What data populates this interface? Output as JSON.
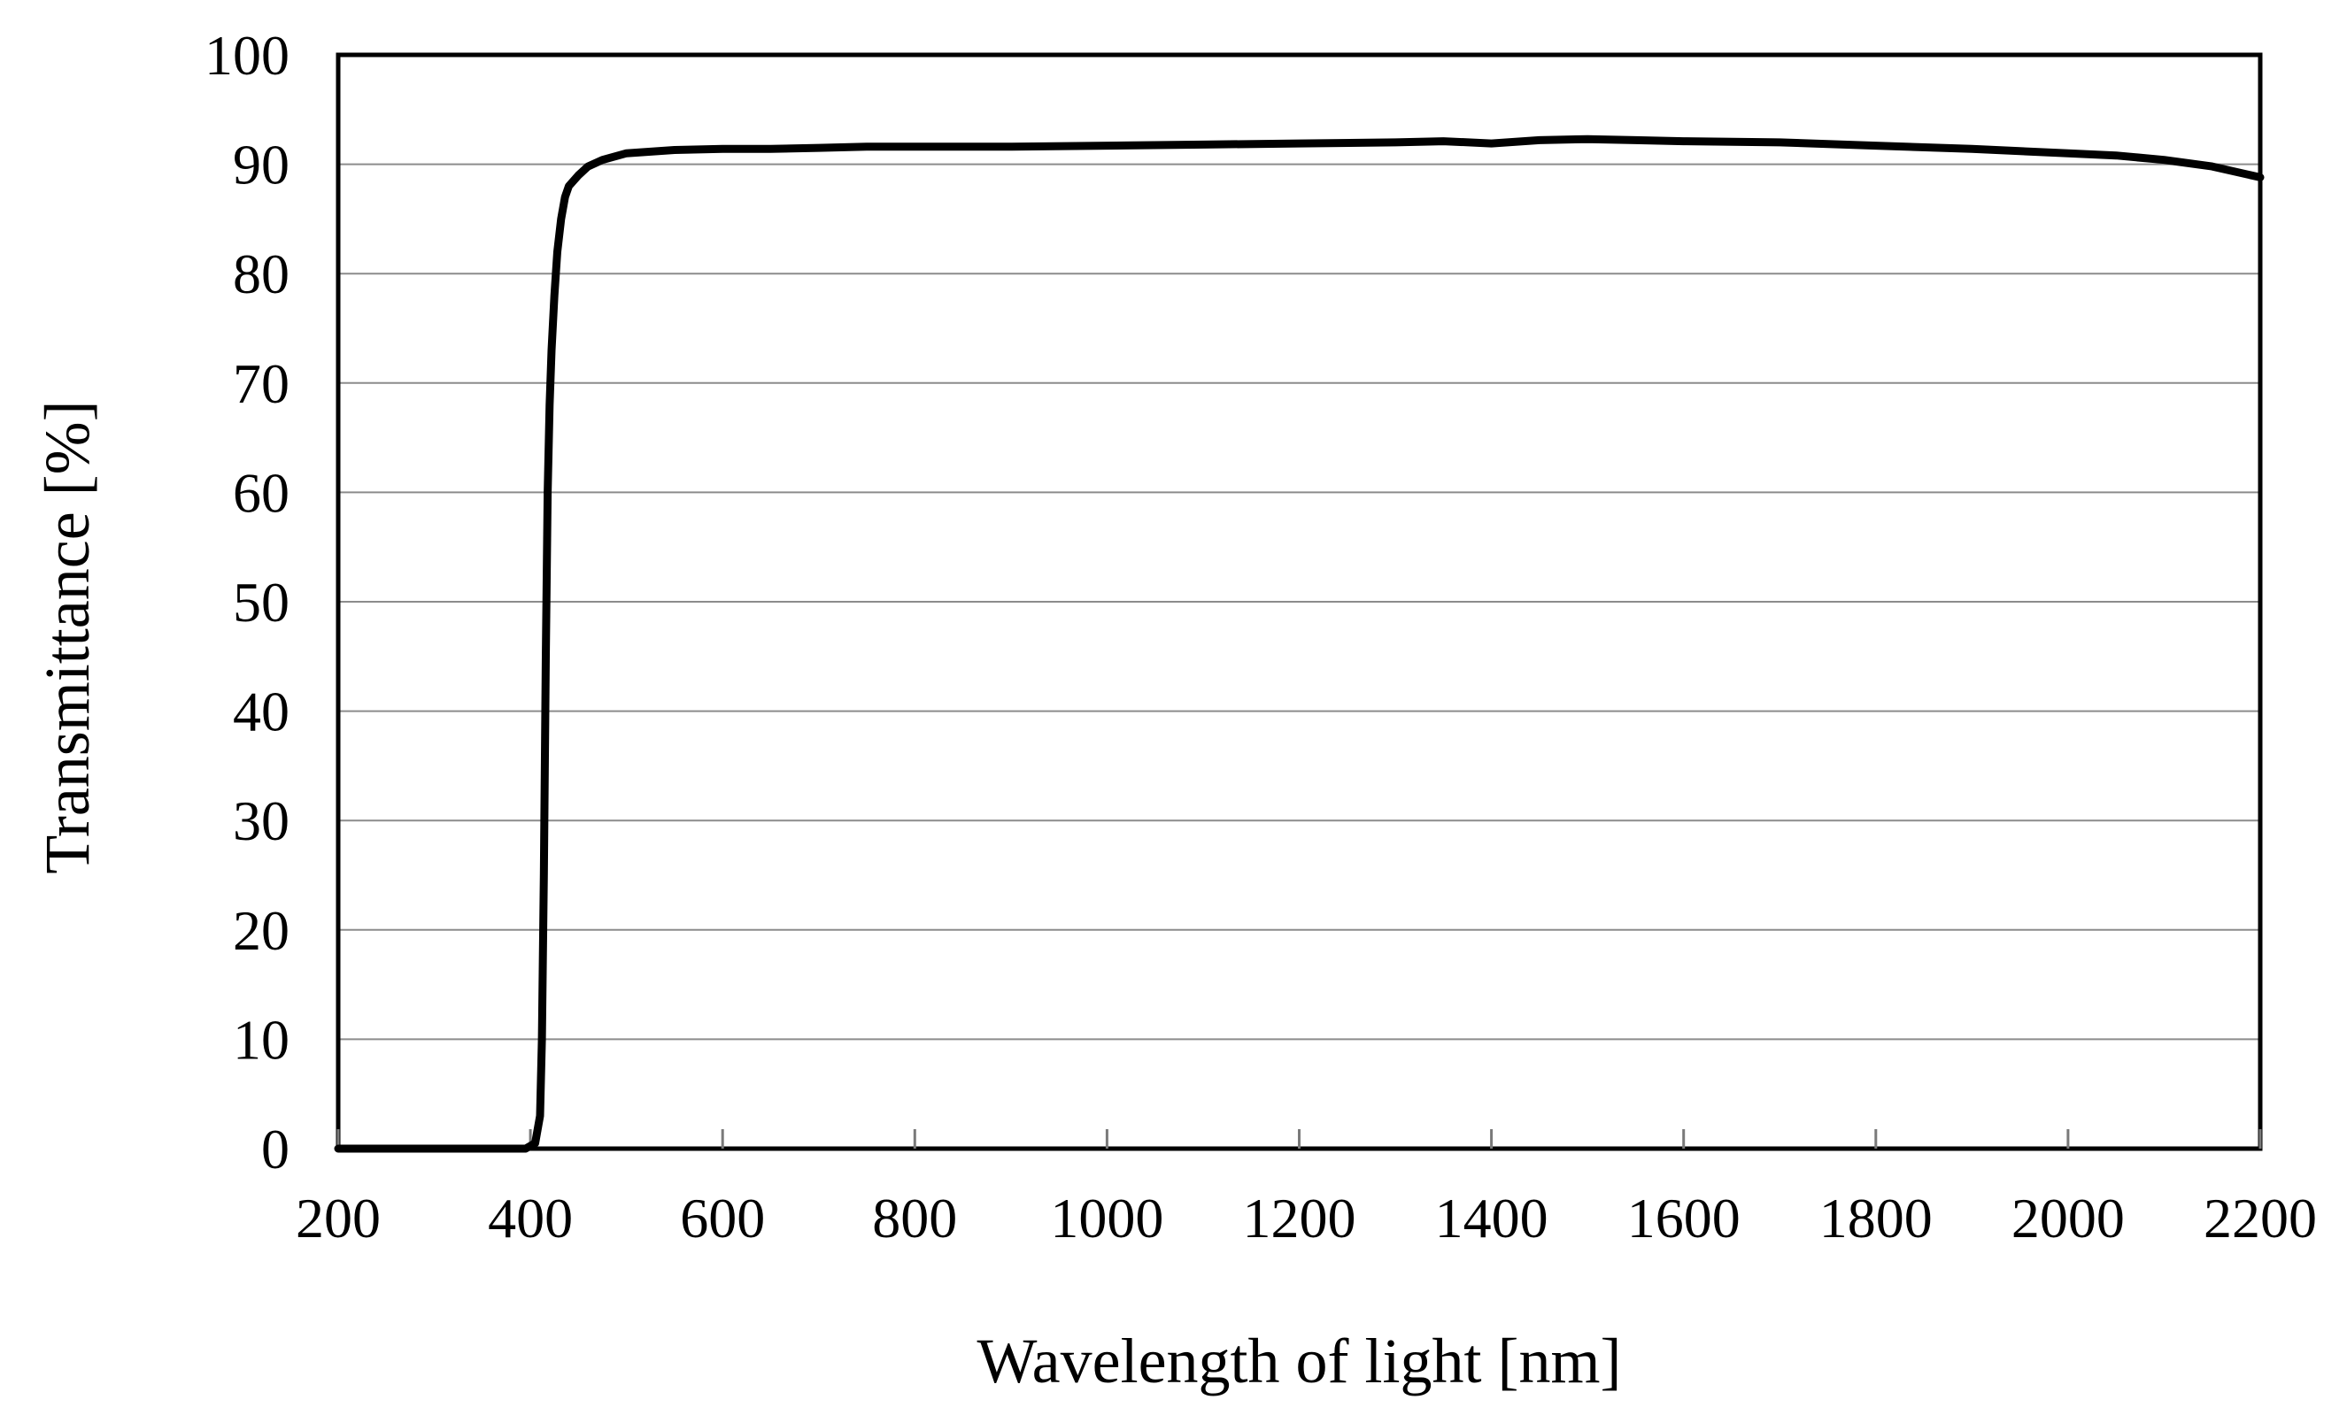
{
  "chart_data": {
    "type": "line",
    "xlabel": "Wavelength of light [nm]",
    "ylabel": "Transmittance [%]",
    "xlim": [
      200,
      2200
    ],
    "ylim": [
      0,
      100
    ],
    "x_ticks": [
      200,
      400,
      600,
      800,
      1000,
      1200,
      1400,
      1600,
      1800,
      2000,
      2200
    ],
    "y_ticks": [
      0,
      10,
      20,
      30,
      40,
      50,
      60,
      70,
      80,
      90,
      100
    ],
    "grid": "horizontal",
    "legend": "none",
    "line_color": "#000000",
    "series": [
      {
        "x": [
          200,
          250,
          300,
          350,
          395,
          405,
          410,
          412,
          414,
          416,
          418,
          420,
          422,
          425,
          428,
          432,
          436,
          440,
          450,
          460,
          475,
          500,
          550,
          600,
          650,
          700,
          750,
          800,
          850,
          900,
          1000,
          1100,
          1200,
          1300,
          1350,
          1400,
          1450,
          1500,
          1550,
          1600,
          1700,
          1800,
          1900,
          2000,
          2050,
          2100,
          2150,
          2200
        ],
        "y": [
          0,
          0,
          0,
          0,
          0,
          0.5,
          3,
          10,
          25,
          45,
          60,
          68,
          73,
          78,
          82,
          85,
          87,
          88,
          89,
          89.8,
          90.4,
          91,
          91.3,
          91.4,
          91.4,
          91.5,
          91.6,
          91.6,
          91.6,
          91.6,
          91.7,
          91.8,
          91.9,
          92,
          92.1,
          91.9,
          92.2,
          92.3,
          92.2,
          92.1,
          92,
          91.7,
          91.4,
          91,
          90.8,
          90.4,
          89.8,
          88.8
        ]
      }
    ]
  }
}
